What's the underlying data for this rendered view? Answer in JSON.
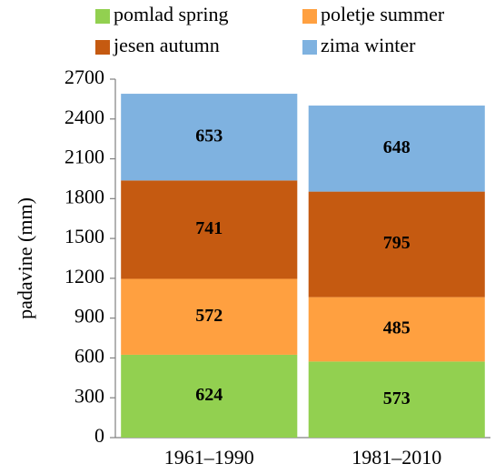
{
  "chart_data": {
    "type": "stacked_bar",
    "categories": [
      "1961–1990",
      "1981–2010"
    ],
    "y_label": "padavine (mm)",
    "series": [
      {
        "name": "pomlad spring",
        "color": "#92d050",
        "values": [
          624,
          573
        ]
      },
      {
        "name": "poletje summer",
        "color": "#ffa040",
        "values": [
          572,
          485
        ]
      },
      {
        "name": "jesen autumn",
        "color": "#c55a11",
        "values": [
          741,
          795
        ]
      },
      {
        "name": "zima winter",
        "color": "#7fb2e0",
        "values": [
          653,
          648
        ]
      }
    ],
    "ylim": [
      0,
      2700
    ],
    "yticks": [
      0,
      300,
      600,
      900,
      1200,
      1500,
      1800,
      2100,
      2400,
      2700
    ],
    "grid": false,
    "legend": "top"
  }
}
